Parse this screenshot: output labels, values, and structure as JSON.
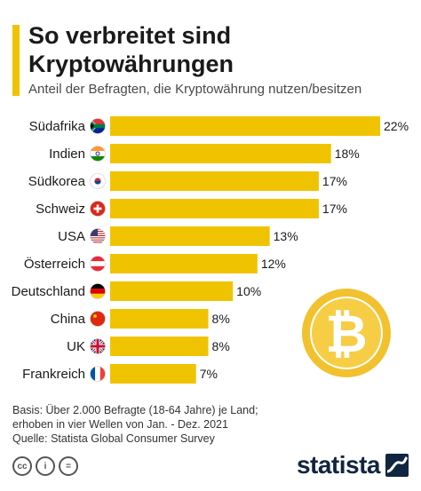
{
  "header": {
    "title_line1": "So verbreitet sind",
    "title_line2": "Kryptowährungen",
    "subtitle": "Anteil der Befragten, die Kryptowährung nutzen/besitzen"
  },
  "chart_data": {
    "type": "bar",
    "orientation": "horizontal",
    "categories": [
      "Südafrika",
      "Indien",
      "Südkorea",
      "Schweiz",
      "USA",
      "Österreich",
      "Deutschland",
      "China",
      "UK",
      "Frankreich"
    ],
    "values": [
      22,
      18,
      17,
      17,
      13,
      12,
      10,
      8,
      8,
      7
    ],
    "value_labels": [
      "22%",
      "18%",
      "17%",
      "17%",
      "13%",
      "12%",
      "10%",
      "8%",
      "8%",
      "7%"
    ],
    "unit": "%",
    "xlim": [
      0,
      22
    ],
    "grid": false,
    "bar_color": "#f0c300",
    "flags": [
      "za-flag",
      "in-flag",
      "kr-flag",
      "ch-flag",
      "us-flag",
      "at-flag",
      "de-flag",
      "cn-flag",
      "uk-flag",
      "fr-flag"
    ]
  },
  "footer": {
    "source_line1": "Basis: Über 2.000 Befragte (18-64 Jahre) je Land;",
    "source_line2": "erhoben in vier Wellen von Jan. - Dez. 2021",
    "source_line3": "Quelle: Statista Global Consumer Survey",
    "cc_icons": [
      "cc",
      "by",
      "nd"
    ],
    "cc_glyphs": [
      "cc",
      "i",
      "="
    ],
    "brand": "statista"
  },
  "colors": {
    "accent": "#f0c300",
    "coin": "#f2c12e",
    "brand_navy": "#10253f"
  },
  "decoration": {
    "coin_symbol": "₿"
  }
}
